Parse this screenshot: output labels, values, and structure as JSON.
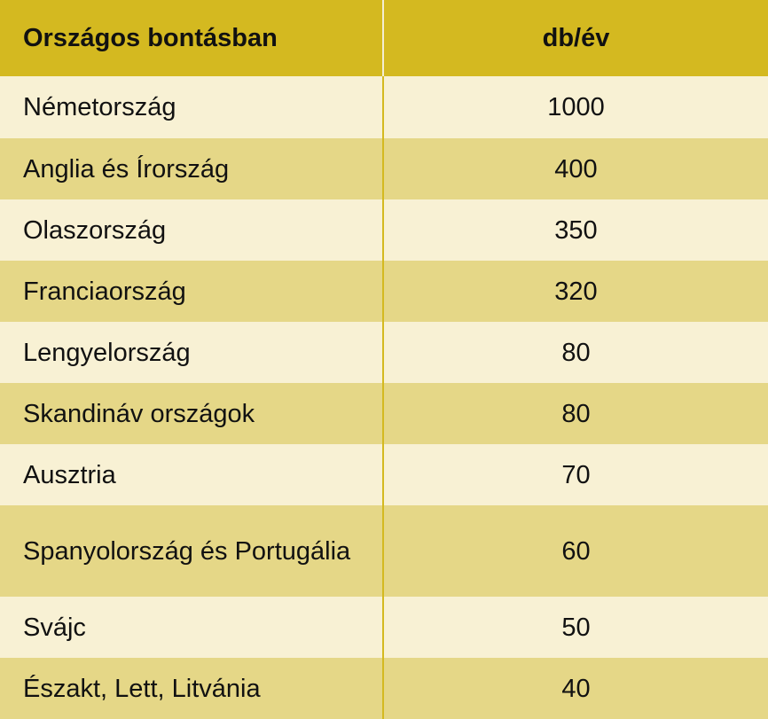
{
  "chart_data": {
    "type": "table",
    "columns": [
      "Országos bontásban",
      "db/év"
    ],
    "rows": [
      {
        "country": "Németország",
        "value": "1000"
      },
      {
        "country": "Anglia és Írország",
        "value": "400"
      },
      {
        "country": "Olaszország",
        "value": "350"
      },
      {
        "country": "Franciaország",
        "value": "320"
      },
      {
        "country": "Lengyelország",
        "value": "80"
      },
      {
        "country": "Skandináv országok",
        "value": "80"
      },
      {
        "country": "Ausztria",
        "value": "70"
      },
      {
        "country": "Spanyolország és Portugália",
        "value": "60"
      },
      {
        "country": "Svájc",
        "value": "50"
      },
      {
        "country": "Északt, Lett, Litvánia",
        "value": "40"
      }
    ]
  },
  "colors": {
    "header": "#d4b920",
    "row_light": "#f8f1d4",
    "row_dark": "#e5d787",
    "text": "#111111"
  }
}
